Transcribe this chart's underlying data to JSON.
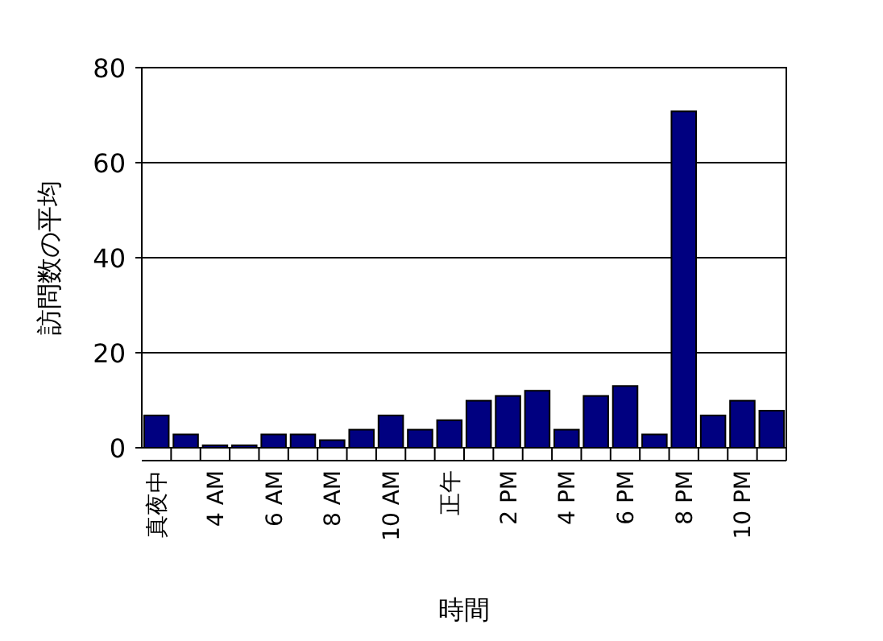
{
  "chart_data": {
    "type": "bar",
    "xlabel": "時間",
    "ylabel": "訪問数の平均",
    "categories": [
      "真夜中",
      null,
      "4 AM",
      null,
      "6 AM",
      null,
      "8 AM",
      null,
      "10 AM",
      null,
      "正午",
      null,
      "2 PM",
      null,
      "4 PM",
      null,
      "6 PM",
      null,
      "8 PM",
      null,
      "10 PM",
      null
    ],
    "values": [
      6.8,
      2.8,
      0.5,
      0.5,
      2.8,
      2.8,
      1.6,
      3.8,
      6.8,
      3.8,
      5.8,
      9.9,
      10.9,
      12,
      3.8,
      10.9,
      13,
      2.8,
      70.8,
      6.8,
      9.9,
      7.8
    ],
    "color": "#000080",
    "ylim": [
      0,
      80
    ],
    "yticks": [
      0,
      20,
      40,
      60,
      80
    ],
    "grid": "y"
  }
}
